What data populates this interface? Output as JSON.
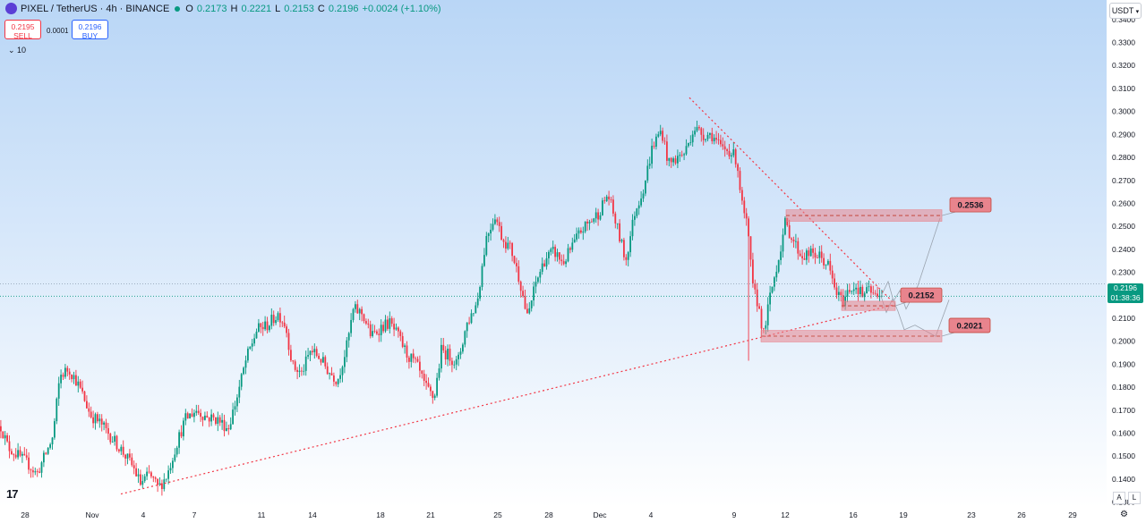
{
  "header": {
    "symbol": "PIXEL / TetherUS · 4h · BINANCE",
    "o_label": "O",
    "o_value": "0.2173",
    "h_label": "H",
    "h_value": "0.2221",
    "l_label": "L",
    "l_value": "0.2153",
    "c_label": "C",
    "c_value": "0.2196",
    "change": "+0.0024 (+1.10%)"
  },
  "trade": {
    "sell_price": "0.2195",
    "sell_label": "SELL",
    "spread": "0.0001",
    "buy_price": "0.2196",
    "buy_label": "BUY"
  },
  "volume_toggle": "10",
  "currency_selector": "USDT",
  "current_price": {
    "price": "0.2196",
    "countdown": "01:38:36"
  },
  "corner_buttons": {
    "auto": "A",
    "log": "L"
  },
  "colors": {
    "up": "#089981",
    "down": "#f23645",
    "box": "#e8848d",
    "trendline": "#f23645"
  },
  "chart_data": {
    "type": "candlestick",
    "ylim": [
      0.1275,
      0.3485
    ],
    "y_ticks": [
      "0.3400",
      "0.3300",
      "0.3200",
      "0.3100",
      "0.3000",
      "0.2900",
      "0.2800",
      "0.2700",
      "0.2600",
      "0.2500",
      "0.2400",
      "0.2300",
      "0.2200",
      "0.2100",
      "0.2000",
      "0.1900",
      "0.1800",
      "0.1700",
      "0.1600",
      "0.1500",
      "0.1400",
      "0.1300"
    ],
    "x_ticks": [
      "28",
      "Nov",
      "4",
      "7",
      "11",
      "14",
      "18",
      "21",
      "25",
      "28",
      "Dec",
      "4",
      "9",
      "12",
      "16",
      "19",
      "23",
      "26",
      "29"
    ],
    "price_series": [
      [
        0,
        0.163
      ],
      [
        8,
        0.154
      ],
      [
        20,
        0.15
      ],
      [
        32,
        0.146
      ],
      [
        40,
        0.142
      ],
      [
        48,
        0.149
      ],
      [
        58,
        0.158
      ],
      [
        66,
        0.185
      ],
      [
        76,
        0.188
      ],
      [
        84,
        0.183
      ],
      [
        92,
        0.176
      ],
      [
        100,
        0.168
      ],
      [
        112,
        0.164
      ],
      [
        124,
        0.158
      ],
      [
        136,
        0.152
      ],
      [
        148,
        0.145
      ],
      [
        156,
        0.138
      ],
      [
        166,
        0.142
      ],
      [
        176,
        0.136
      ],
      [
        186,
        0.142
      ],
      [
        196,
        0.155
      ],
      [
        206,
        0.166
      ],
      [
        218,
        0.17
      ],
      [
        230,
        0.167
      ],
      [
        242,
        0.166
      ],
      [
        254,
        0.162
      ],
      [
        264,
        0.176
      ],
      [
        274,
        0.192
      ],
      [
        286,
        0.205
      ],
      [
        298,
        0.207
      ],
      [
        310,
        0.212
      ],
      [
        318,
        0.207
      ],
      [
        326,
        0.189
      ],
      [
        336,
        0.186
      ],
      [
        346,
        0.196
      ],
      [
        356,
        0.193
      ],
      [
        366,
        0.187
      ],
      [
        376,
        0.183
      ],
      [
        386,
        0.197
      ],
      [
        394,
        0.214
      ],
      [
        404,
        0.212
      ],
      [
        414,
        0.202
      ],
      [
        424,
        0.206
      ],
      [
        434,
        0.208
      ],
      [
        444,
        0.202
      ],
      [
        454,
        0.194
      ],
      [
        464,
        0.19
      ],
      [
        474,
        0.18
      ],
      [
        484,
        0.175
      ],
      [
        492,
        0.196
      ],
      [
        500,
        0.194
      ],
      [
        510,
        0.19
      ],
      [
        520,
        0.207
      ],
      [
        532,
        0.217
      ],
      [
        542,
        0.245
      ],
      [
        552,
        0.255
      ],
      [
        560,
        0.245
      ],
      [
        570,
        0.24
      ],
      [
        580,
        0.226
      ],
      [
        588,
        0.21
      ],
      [
        598,
        0.226
      ],
      [
        608,
        0.236
      ],
      [
        618,
        0.239
      ],
      [
        628,
        0.234
      ],
      [
        638,
        0.241
      ],
      [
        648,
        0.248
      ],
      [
        658,
        0.252
      ],
      [
        668,
        0.256
      ],
      [
        678,
        0.264
      ],
      [
        688,
        0.25
      ],
      [
        698,
        0.235
      ],
      [
        708,
        0.256
      ],
      [
        718,
        0.267
      ],
      [
        728,
        0.285
      ],
      [
        738,
        0.292
      ],
      [
        746,
        0.277
      ],
      [
        756,
        0.28
      ],
      [
        764,
        0.282
      ],
      [
        774,
        0.293
      ],
      [
        784,
        0.29
      ],
      [
        794,
        0.29
      ],
      [
        804,
        0.284
      ],
      [
        814,
        0.283
      ],
      [
        822,
        0.279
      ],
      [
        828,
        0.259
      ],
      [
        834,
        0.249
      ],
      [
        840,
        0.223
      ],
      [
        846,
        0.216
      ],
      [
        852,
        0.203
      ],
      [
        860,
        0.221
      ],
      [
        868,
        0.235
      ],
      [
        876,
        0.251
      ],
      [
        884,
        0.245
      ],
      [
        894,
        0.237
      ],
      [
        904,
        0.238
      ],
      [
        914,
        0.237
      ],
      [
        924,
        0.233
      ],
      [
        932,
        0.222
      ],
      [
        940,
        0.217
      ],
      [
        948,
        0.223
      ],
      [
        956,
        0.224
      ],
      [
        962,
        0.22
      ],
      [
        970,
        0.222
      ],
      [
        978,
        0.219
      ],
      [
        984,
        0.2196
      ]
    ],
    "boxes": [
      {
        "label": "0.2536",
        "top": 0.2572,
        "bottom": 0.2522
      },
      {
        "label": "0.2152",
        "top": 0.2174,
        "bottom": 0.2134
      },
      {
        "label": "0.2021",
        "top": 0.2047,
        "bottom": 0.1997
      }
    ],
    "trendline_support": [
      [
        135,
        0.1335
      ],
      [
        1000,
        0.216
      ]
    ],
    "trendline_resistance": [
      [
        770,
        0.306
      ],
      [
        1000,
        0.216
      ]
    ],
    "projection_paths": [
      [
        [
          984,
          0.2196
        ],
        [
          992,
          0.226
        ],
        [
          998,
          0.2175
        ],
        [
          1005,
          0.222
        ],
        [
          1012,
          0.214
        ],
        [
          1025,
          0.224
        ],
        [
          1050,
          0.2536
        ]
      ],
      [
        [
          984,
          0.2196
        ],
        [
          990,
          0.2125
        ],
        [
          997,
          0.2185
        ],
        [
          1003,
          0.213
        ],
        [
          1010,
          0.205
        ],
        [
          1022,
          0.207
        ],
        [
          1045,
          0.2021
        ],
        [
          1060,
          0.218
        ]
      ]
    ]
  }
}
